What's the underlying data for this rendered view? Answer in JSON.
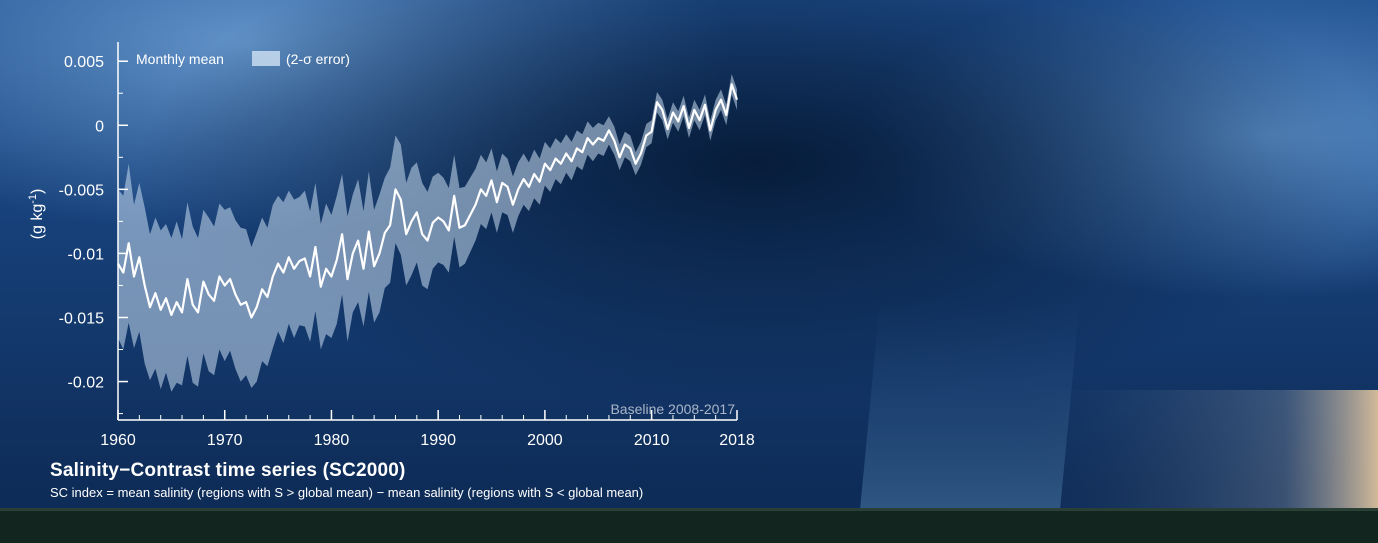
{
  "chart_data": {
    "type": "area",
    "title": "Salinity−Contrast time series (SC2000)",
    "subtitle": "SC index = mean salinity (regions with S > global mean) − mean salinity (regions with S < global mean)",
    "ylabel": "(g kg",
    "ylabel_sup": "-1",
    "ylabel_close": ")",
    "xlabel": "",
    "xlim": [
      1960,
      2018
    ],
    "ylim": [
      -0.023,
      0.0065
    ],
    "x_ticks": [
      1960,
      1970,
      1980,
      1990,
      2000,
      2010,
      2018
    ],
    "x_tick_labels": [
      "1960",
      "1970",
      "1980",
      "1990",
      "2000",
      "2010",
      "2018"
    ],
    "y_ticks": [
      0.005,
      0,
      -0.005,
      -0.01,
      -0.015,
      -0.02
    ],
    "y_tick_labels": [
      "0.005",
      "0",
      "-0.005",
      "-0.01",
      "-0.015",
      "-0.02"
    ],
    "grid": false,
    "legend": {
      "position": "top-left",
      "entries": [
        {
          "label": "Monthly mean",
          "symbol": "line"
        },
        {
          "label": "(2-σ error)",
          "symbol": "band"
        }
      ]
    },
    "annotation": "Baseline 2008-2017",
    "series": [
      {
        "name": "Monthly mean",
        "x": [
          1960,
          1960.5,
          1961,
          1961.5,
          1962,
          1962.5,
          1963,
          1963.5,
          1964,
          1964.5,
          1965,
          1965.5,
          1966,
          1966.5,
          1967,
          1967.5,
          1968,
          1968.5,
          1969,
          1969.5,
          1970,
          1970.5,
          1971,
          1971.5,
          1972,
          1972.5,
          1973,
          1973.5,
          1974,
          1974.5,
          1975,
          1975.5,
          1976,
          1976.5,
          1977,
          1977.5,
          1978,
          1978.5,
          1979,
          1979.5,
          1980,
          1980.5,
          1981,
          1981.5,
          1982,
          1982.5,
          1983,
          1983.5,
          1984,
          1984.5,
          1985,
          1985.5,
          1986,
          1986.5,
          1987,
          1987.5,
          1988,
          1988.5,
          1989,
          1989.5,
          1990,
          1990.5,
          1991,
          1991.5,
          1992,
          1992.5,
          1993,
          1993.5,
          1994,
          1994.5,
          1995,
          1995.5,
          1996,
          1996.5,
          1997,
          1997.5,
          1998,
          1998.5,
          1999,
          1999.5,
          2000,
          2000.5,
          2001,
          2001.5,
          2002,
          2002.5,
          2003,
          2003.5,
          2004,
          2004.5,
          2005,
          2005.5,
          2006,
          2006.5,
          2007,
          2007.5,
          2008,
          2008.5,
          2009,
          2009.5,
          2010,
          2010.5,
          2011,
          2011.5,
          2012,
          2012.5,
          2013,
          2013.5,
          2014,
          2014.5,
          2015,
          2015.5,
          2016,
          2016.5,
          2017,
          2017.5,
          2018
        ],
        "values": [
          -0.0108,
          -0.0115,
          -0.0092,
          -0.0118,
          -0.0103,
          -0.0125,
          -0.0142,
          -0.0131,
          -0.0144,
          -0.0135,
          -0.0148,
          -0.0138,
          -0.0146,
          -0.012,
          -0.014,
          -0.0146,
          -0.0122,
          -0.0132,
          -0.0137,
          -0.0118,
          -0.0125,
          -0.012,
          -0.0132,
          -0.014,
          -0.0138,
          -0.015,
          -0.0142,
          -0.0128,
          -0.0134,
          -0.0118,
          -0.0108,
          -0.0115,
          -0.0103,
          -0.0112,
          -0.0106,
          -0.0104,
          -0.0118,
          -0.0095,
          -0.0126,
          -0.0112,
          -0.0118,
          -0.0105,
          -0.0085,
          -0.012,
          -0.01,
          -0.009,
          -0.0112,
          -0.0083,
          -0.011,
          -0.01,
          -0.0084,
          -0.0078,
          -0.005,
          -0.0058,
          -0.0085,
          -0.0075,
          -0.0068,
          -0.0085,
          -0.009,
          -0.0076,
          -0.0072,
          -0.0075,
          -0.0082,
          -0.0055,
          -0.008,
          -0.0078,
          -0.007,
          -0.0062,
          -0.005,
          -0.0055,
          -0.0043,
          -0.006,
          -0.0045,
          -0.0048,
          -0.0062,
          -0.005,
          -0.0042,
          -0.0048,
          -0.0038,
          -0.0044,
          -0.003,
          -0.0035,
          -0.0026,
          -0.003,
          -0.0022,
          -0.0028,
          -0.0018,
          -0.0021,
          -0.001,
          -0.0015,
          -0.001,
          -0.0012,
          -0.0004,
          -0.0012,
          -0.0025,
          -0.0015,
          -0.0018,
          -0.003,
          -0.0022,
          -0.0008,
          -0.0005,
          0.0018,
          0.0012,
          -0.0003,
          0.001,
          0.0003,
          0.0015,
          -0.0002,
          0.0012,
          0.0004,
          0.0016,
          -0.0004,
          0.0012,
          0.002,
          0.0008,
          0.0032,
          0.002
        ]
      }
    ],
    "band": {
      "name": "(2-σ error)",
      "halfwidth": [
        0.0058,
        0.006,
        0.0062,
        0.0056,
        0.0058,
        0.0061,
        0.0057,
        0.0059,
        0.0062,
        0.0058,
        0.006,
        0.0063,
        0.0057,
        0.006,
        0.0061,
        0.0058,
        0.0056,
        0.006,
        0.0058,
        0.0057,
        0.0059,
        0.0056,
        0.0058,
        0.006,
        0.0057,
        0.0055,
        0.0058,
        0.0056,
        0.0054,
        0.0056,
        0.0053,
        0.0055,
        0.0052,
        0.0054,
        0.005,
        0.0053,
        0.0051,
        0.005,
        0.0049,
        0.0051,
        0.0048,
        0.005,
        0.0047,
        0.0049,
        0.0046,
        0.0048,
        0.0045,
        0.0047,
        0.0044,
        0.0046,
        0.0043,
        0.0045,
        0.0042,
        0.0043,
        0.004,
        0.0042,
        0.0039,
        0.004,
        0.0038,
        0.0036,
        0.0035,
        0.0034,
        0.0033,
        0.0032,
        0.0031,
        0.003,
        0.0029,
        0.0028,
        0.0027,
        0.0026,
        0.0025,
        0.0024,
        0.0023,
        0.0022,
        0.0022,
        0.0021,
        0.002,
        0.0019,
        0.0019,
        0.0018,
        0.0017,
        0.0017,
        0.0016,
        0.0016,
        0.0015,
        0.0015,
        0.0014,
        0.0014,
        0.0013,
        0.0013,
        0.0012,
        0.0012,
        0.0011,
        0.0011,
        0.001,
        0.001,
        0.001,
        0.0009,
        0.0009,
        0.0009,
        0.0009,
        0.0008,
        0.0008,
        0.0008,
        0.0008,
        0.0008,
        0.0008,
        0.0008,
        0.0008,
        0.0008,
        0.0008,
        0.0008,
        0.0008,
        0.0008,
        0.0008,
        0.0008,
        0.0008
      ]
    },
    "colors": {
      "line": "#ffffff",
      "band": "#c9dcf0",
      "axis": "#ffffff"
    }
  }
}
